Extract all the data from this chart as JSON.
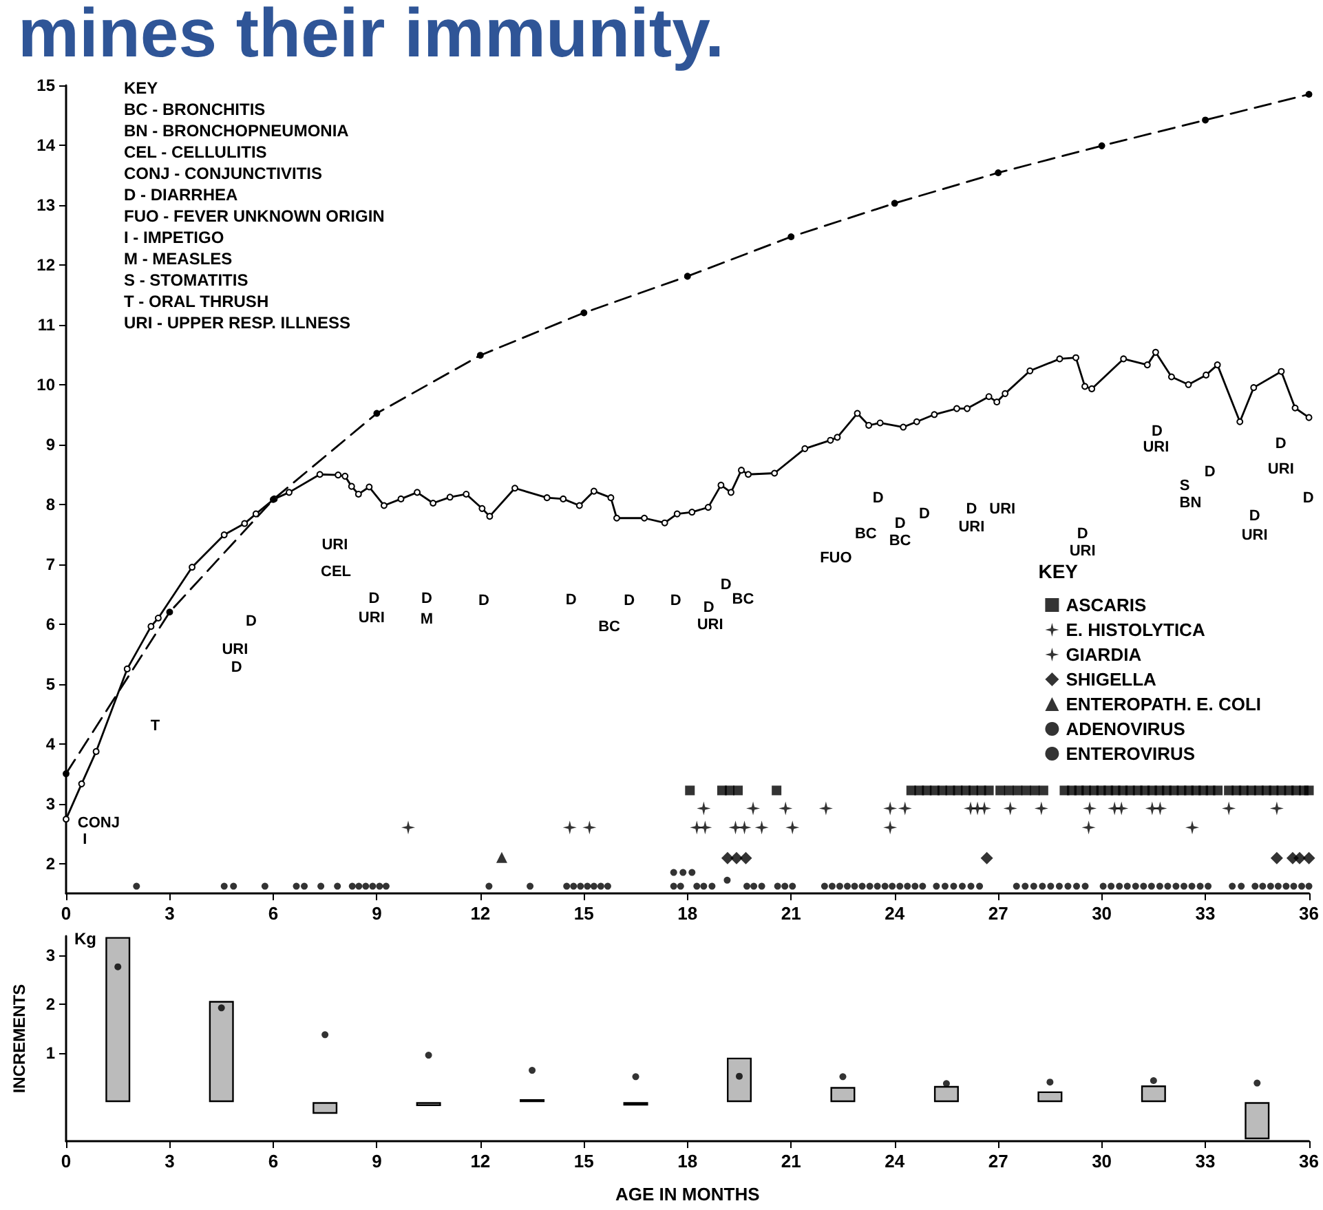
{
  "chart_data": [
    {
      "type": "line",
      "title": "mines their immunity.",
      "xlim": [
        0,
        36
      ],
      "xticks": [
        0,
        3,
        6,
        9,
        12,
        15,
        18,
        21,
        24,
        27,
        30,
        33,
        36
      ],
      "ylim": [
        1.5,
        15
      ],
      "yticks": [
        2,
        3,
        4,
        5,
        6,
        7,
        8,
        9,
        10,
        11,
        12,
        13,
        14,
        15
      ],
      "grid": false,
      "legend": "right",
      "legend_title": "KEY",
      "series": [
        {
          "color": "#000000",
          "marker": "circle",
          "line_style": "solid",
          "x": [
            0,
            0.45,
            0.87,
            1.77,
            2.46,
            2.67,
            3.65,
            4.58,
            5.17,
            5.5,
            6.03,
            6.46,
            7.35,
            7.88,
            8.08,
            8.27,
            8.47,
            8.78,
            9.21,
            9.7,
            10.17,
            10.63,
            11.12,
            11.59,
            12.05,
            12.27,
            13.0,
            13.93,
            14.4,
            14.87,
            15.29,
            15.78,
            15.95,
            16.75,
            17.34,
            17.7,
            18.13,
            18.6,
            18.97,
            19.26,
            19.56,
            19.76,
            20.52,
            21.4,
            22.14,
            22.34,
            22.92,
            23.25,
            23.58,
            24.25,
            24.64,
            25.15,
            25.8,
            26.1,
            26.73,
            26.96,
            27.2,
            27.92,
            28.78,
            29.25,
            29.51,
            29.71,
            30.63,
            31.32,
            31.56,
            32.02,
            32.51,
            33.02,
            33.35,
            34.0,
            34.4,
            35.2,
            35.6,
            36
          ],
          "values": [
            2.74,
            3.33,
            3.87,
            5.25,
            5.96,
            6.1,
            6.95,
            7.49,
            7.68,
            7.84,
            8.09,
            8.2,
            8.5,
            8.49,
            8.47,
            8.3,
            8.17,
            8.29,
            7.98,
            8.09,
            8.2,
            8.02,
            8.12,
            8.17,
            7.93,
            7.8,
            8.27,
            8.11,
            8.09,
            7.98,
            8.22,
            8.11,
            7.77,
            7.77,
            7.69,
            7.84,
            7.87,
            7.95,
            8.32,
            8.2,
            8.57,
            8.5,
            8.52,
            8.93,
            9.07,
            9.12,
            9.52,
            9.32,
            9.36,
            9.29,
            9.38,
            9.5,
            9.6,
            9.6,
            9.8,
            9.71,
            9.85,
            10.23,
            10.43,
            10.45,
            9.97,
            9.93,
            10.43,
            10.33,
            10.54,
            10.13,
            10.0,
            10.16,
            10.33,
            9.38,
            9.95,
            10.22,
            9.61,
            9.45
          ]
        },
        {
          "color": "#000000",
          "marker": "circle",
          "line_style": "dashed",
          "x": [
            0,
            3,
            6,
            9,
            12,
            15,
            18,
            21,
            24,
            27,
            30,
            33,
            36
          ],
          "values": [
            3.5,
            6.2,
            8.08,
            9.52,
            10.49,
            11.2,
            11.81,
            12.47,
            13.03,
            13.54,
            13.99,
            14.42,
            14.85
          ]
        },
        {
          "type": "scatter",
          "name": "ASCARIS",
          "color": "#000000",
          "marker": "square",
          "x": [
            18.07,
            19.0,
            19.22,
            19.46,
            20.58,
            24.48,
            24.71,
            24.93,
            25.16,
            25.38,
            25.61,
            25.83,
            26.06,
            26.28,
            26.51,
            26.73,
            27.06,
            27.31,
            27.56,
            27.81,
            28.06,
            28.31,
            28.92,
            29.13,
            29.34,
            29.55,
            29.77,
            29.98,
            30.19,
            30.4,
            30.61,
            30.82,
            31.04,
            31.25,
            31.46,
            31.67,
            31.88,
            32.09,
            32.31,
            32.52,
            32.73,
            32.94,
            33.15,
            33.36,
            33.68,
            33.9,
            34.11,
            34.33,
            34.55,
            34.77,
            34.98,
            35.2,
            35.42,
            35.63,
            35.85,
            36.0
          ],
          "values": [
            3.22,
            3.22,
            3.22,
            3.22,
            3.22,
            3.22,
            3.22,
            3.22,
            3.22,
            3.22,
            3.22,
            3.22,
            3.22,
            3.22,
            3.22,
            3.22,
            3.22,
            3.22,
            3.22,
            3.22,
            3.22,
            3.22,
            3.22,
            3.22,
            3.22,
            3.22,
            3.22,
            3.22,
            3.22,
            3.22,
            3.22,
            3.22,
            3.22,
            3.22,
            3.22,
            3.22,
            3.22,
            3.22,
            3.22,
            3.22,
            3.22,
            3.22,
            3.22,
            3.22,
            3.22,
            3.22,
            3.22,
            3.22,
            3.22,
            3.22,
            3.22,
            3.22,
            3.22,
            3.22,
            3.22,
            3.22
          ]
        },
        {
          "type": "scatter",
          "name": "E. HISTOLYTICA",
          "color": "#000000",
          "marker": "star",
          "x": [
            18.47,
            19.9,
            20.84,
            22.01,
            23.87,
            24.3,
            26.2,
            26.4,
            26.6,
            27.35,
            28.25,
            29.65,
            30.37,
            30.57,
            31.46,
            31.69,
            33.68,
            35.07
          ],
          "values": [
            2.92,
            2.92,
            2.92,
            2.92,
            2.92,
            2.92,
            2.92,
            2.92,
            2.92,
            2.92,
            2.92,
            2.92,
            2.92,
            2.92,
            2.92,
            2.92,
            2.92,
            2.92
          ]
        },
        {
          "type": "scatter",
          "name": "GIARDIA",
          "color": "#000000",
          "marker": "star",
          "x": [
            9.91,
            14.59,
            15.16,
            18.27,
            18.51,
            19.39,
            19.65,
            20.15,
            21.04,
            23.87,
            29.62,
            32.62
          ],
          "values": [
            2.6,
            2.6,
            2.6,
            2.6,
            2.6,
            2.6,
            2.6,
            2.6,
            2.6,
            2.6,
            2.6,
            2.6
          ]
        },
        {
          "type": "scatter",
          "name": "SHIGELLA",
          "color": "#000000",
          "marker": "diamond",
          "x": [
            19.16,
            19.42,
            19.69,
            26.67,
            35.07,
            35.53,
            35.73,
            36.0
          ],
          "values": [
            2.09,
            2.09,
            2.09,
            2.09,
            2.09,
            2.09,
            2.09,
            2.09
          ]
        },
        {
          "type": "scatter",
          "name": "ENTEROPATH. E. COLI",
          "color": "#000000",
          "marker": "triangle",
          "x": [
            12.62
          ],
          "values": [
            2.1
          ]
        },
        {
          "type": "scatter",
          "name": "ADENOVIRUS",
          "color": "#000000",
          "marker": "circle",
          "x": [
            17.6,
            17.87,
            18.13,
            19.15
          ],
          "values": [
            1.85,
            1.85,
            1.85,
            1.72
          ]
        },
        {
          "type": "scatter",
          "name": "ENTEROVIRUS",
          "color": "#000000",
          "marker": "circle",
          "x": [
            2.04,
            4.58,
            4.85,
            5.76,
            6.67,
            6.9,
            7.38,
            7.86,
            8.29,
            8.48,
            8.68,
            8.88,
            9.08,
            9.27,
            12.25,
            13.44,
            14.5,
            14.7,
            14.9,
            15.1,
            15.29,
            15.49,
            15.69,
            17.6,
            17.8,
            18.27,
            18.47,
            18.71,
            19.72,
            19.92,
            20.15,
            20.61,
            20.82,
            21.04,
            21.97,
            22.19,
            22.41,
            22.63,
            22.84,
            23.06,
            23.28,
            23.5,
            23.72,
            23.93,
            24.15,
            24.37,
            24.59,
            24.81,
            25.21,
            25.46,
            25.71,
            25.96,
            26.21,
            26.46,
            27.53,
            27.78,
            28.03,
            28.28,
            28.52,
            28.77,
            29.02,
            29.27,
            29.52,
            30.04,
            30.27,
            30.51,
            30.74,
            30.98,
            31.21,
            31.44,
            31.68,
            31.91,
            32.15,
            32.38,
            32.61,
            32.85,
            33.08,
            33.78,
            34.04,
            34.44,
            34.66,
            34.89,
            35.11,
            35.34,
            35.56,
            35.79,
            36.0
          ],
          "values": [
            1.62,
            1.62,
            1.62,
            1.62,
            1.62,
            1.62,
            1.62,
            1.62,
            1.62,
            1.62,
            1.62,
            1.62,
            1.62,
            1.62,
            1.62,
            1.62,
            1.62,
            1.62,
            1.62,
            1.62,
            1.62,
            1.62,
            1.62,
            1.62,
            1.62,
            1.62,
            1.62,
            1.62,
            1.62,
            1.62,
            1.62,
            1.62,
            1.62,
            1.62,
            1.62,
            1.62,
            1.62,
            1.62,
            1.62,
            1.62,
            1.62,
            1.62,
            1.62,
            1.62,
            1.62,
            1.62,
            1.62,
            1.62,
            1.62,
            1.62,
            1.62,
            1.62,
            1.62,
            1.62,
            1.62,
            1.62,
            1.62,
            1.62,
            1.62,
            1.62,
            1.62,
            1.62,
            1.62,
            1.62,
            1.62,
            1.62,
            1.62,
            1.62,
            1.62,
            1.62,
            1.62,
            1.62,
            1.62,
            1.62,
            1.62,
            1.62,
            1.62,
            1.62,
            1.62,
            1.62,
            1.62,
            1.62,
            1.62,
            1.62,
            1.62,
            1.62,
            1.62
          ]
        }
      ],
      "annotations": [
        "KEY",
        "BC - BRONCHITIS",
        "BN - BRONCHOPNEUMONIA",
        "CEL - CELLULITIS",
        "CONJ - CONJUNCTIVITIS",
        "D - DIARRHEA",
        "FUO - FEVER UNKNOWN ORIGIN",
        "I - IMPETIGO",
        "M - MEASLES",
        "S - STOMATITIS",
        "T - ORAL THRUSH",
        "URI - UPPER RESP. ILLNESS",
        "CONJ",
        "I",
        "T",
        "D",
        "URI",
        "D",
        "URI",
        "CEL",
        "D",
        "URI",
        "D",
        "M",
        "D",
        "D",
        "D",
        "BC",
        "D",
        "D",
        "URI",
        "D",
        "BC",
        "FUO",
        "BC",
        "D",
        "D",
        "BC",
        "D",
        "D",
        "URI",
        "URI",
        "D",
        "URI",
        "D",
        "URI",
        "D",
        "S",
        "BN",
        "D",
        "URI",
        "D",
        "URI",
        "D"
      ]
    },
    {
      "type": "bar",
      "xlabel": "AGE IN MONTHS",
      "ylabel": "INCREMENTS",
      "xlim": [
        0,
        36
      ],
      "xticks": [
        0,
        3,
        6,
        9,
        12,
        15,
        18,
        21,
        24,
        27,
        30,
        33,
        36
      ],
      "ylim": [
        -0.8,
        3.4
      ],
      "yticks": [
        1,
        2,
        3
      ],
      "grid": false,
      "annotations": [
        "Kg"
      ],
      "series": [
        {
          "color": "#bbbbbb",
          "x": [
            1.5,
            4.5,
            7.5,
            10.5,
            13.5,
            16.5,
            19.5,
            22.5,
            25.5,
            28.5,
            31.5,
            34.5
          ],
          "values": [
            3.38,
            2.07,
            -0.24,
            -0.08,
            0.06,
            -0.07,
            0.91,
            0.31,
            0.33,
            0.22,
            0.34,
            -0.76
          ]
        },
        {
          "type": "scatter",
          "color": "#000000",
          "marker": "circle",
          "x": [
            1.5,
            4.5,
            7.5,
            10.5,
            13.5,
            16.5,
            19.5,
            22.5,
            25.5,
            28.5,
            31.5,
            34.5
          ],
          "values": [
            2.77,
            1.93,
            1.38,
            0.96,
            0.65,
            0.52,
            0.53,
            0.52,
            0.38,
            0.41,
            0.44,
            0.39
          ]
        }
      ]
    }
  ]
}
